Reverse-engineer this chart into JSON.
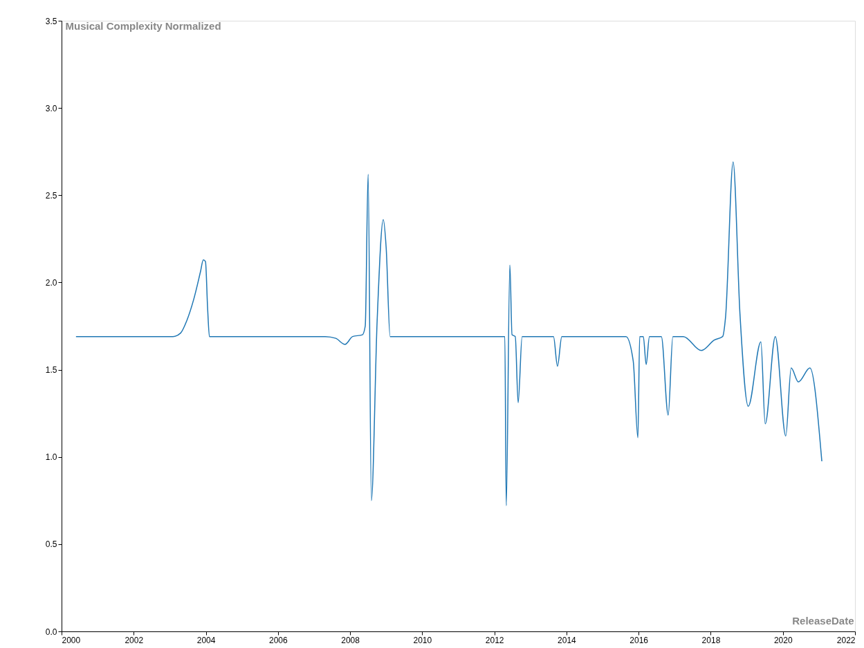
{
  "chart_data": {
    "type": "line",
    "xlabel": "ReleaseDate",
    "ylabel": "Musical Complexity Normalized",
    "x": [
      2000.4,
      2003.09,
      2003.3,
      2003.47,
      2003.66,
      2003.85,
      2003.93,
      2003.99,
      2004.05,
      2004.1,
      2007.31,
      2007.6,
      2007.86,
      2008.07,
      2008.34,
      2008.42,
      2008.5,
      2008.59,
      2008.75,
      2008.92,
      2009.0,
      2009.11,
      2012.29,
      2012.33,
      2012.43,
      2012.49,
      2012.58,
      2012.66,
      2012.77,
      2013.64,
      2013.75,
      2013.87,
      2015.65,
      2015.85,
      2015.98,
      2016.03,
      2016.13,
      2016.21,
      2016.3,
      2016.63,
      2016.82,
      2016.95,
      2017.24,
      2017.74,
      2018.1,
      2018.33,
      2018.41,
      2018.62,
      2018.81,
      2019.04,
      2019.39,
      2019.51,
      2019.79,
      2020.08,
      2020.23,
      2020.43,
      2020.75,
      2021.08
    ],
    "series": [
      {
        "color": "#1f77b4",
        "values": [
          1.69,
          1.69,
          1.71,
          1.78,
          1.9,
          2.06,
          2.13,
          2.12,
          1.85,
          1.69,
          1.69,
          1.68,
          1.645,
          1.69,
          1.7,
          1.75,
          2.62,
          0.75,
          1.78,
          2.36,
          2.2,
          1.69,
          1.69,
          0.72,
          2.1,
          1.7,
          1.69,
          1.31,
          1.69,
          1.69,
          1.52,
          1.69,
          1.69,
          1.55,
          1.11,
          1.69,
          1.69,
          1.53,
          1.69,
          1.69,
          1.24,
          1.69,
          1.69,
          1.61,
          1.67,
          1.69,
          1.8,
          2.69,
          1.82,
          1.29,
          1.66,
          1.19,
          1.69,
          1.12,
          1.51,
          1.43,
          1.51,
          0.975
        ]
      }
    ],
    "xlim": [
      2000,
      2022
    ],
    "xticks": [
      2000,
      2002,
      2004,
      2006,
      2008,
      2010,
      2012,
      2014,
      2016,
      2018,
      2020,
      2022
    ],
    "ylim": [
      0,
      3.5
    ],
    "yticks": [
      {
        "value": 0,
        "label": "0.0"
      },
      {
        "value": 0.5,
        "label": "0.5"
      },
      {
        "value": 1,
        "label": "1.0"
      },
      {
        "value": 1.5,
        "label": "1.5"
      },
      {
        "value": 2,
        "label": "2.0"
      },
      {
        "value": 2.5,
        "label": "2.5"
      },
      {
        "value": 3,
        "label": "3.0"
      },
      {
        "value": 3.5,
        "label": "3.5"
      }
    ],
    "grid": false,
    "marker": "none",
    "line_style": "solid"
  }
}
